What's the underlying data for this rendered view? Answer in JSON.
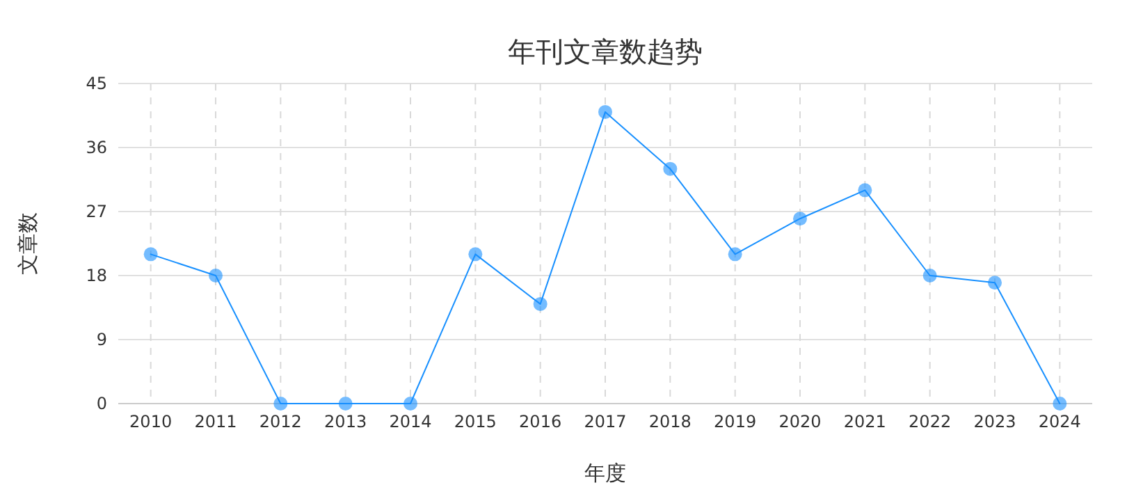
{
  "chart_data": {
    "type": "line",
    "title": "年刊文章数趋势",
    "xlabel": "年度",
    "ylabel": "文章数",
    "categories": [
      "2010",
      "2011",
      "2012",
      "2013",
      "2014",
      "2015",
      "2016",
      "2017",
      "2018",
      "2019",
      "2020",
      "2021",
      "2022",
      "2023",
      "2024"
    ],
    "series": [
      {
        "color": "#1890ff",
        "values": [
          21,
          18,
          0,
          0,
          0,
          21,
          14,
          41,
          33,
          21,
          26,
          30,
          18,
          17,
          0
        ]
      }
    ],
    "ylim": [
      0,
      45
    ],
    "yticks": [
      0,
      9,
      18,
      27,
      36,
      45
    ],
    "grid": true,
    "marker": "circle",
    "line_style": "solid"
  }
}
